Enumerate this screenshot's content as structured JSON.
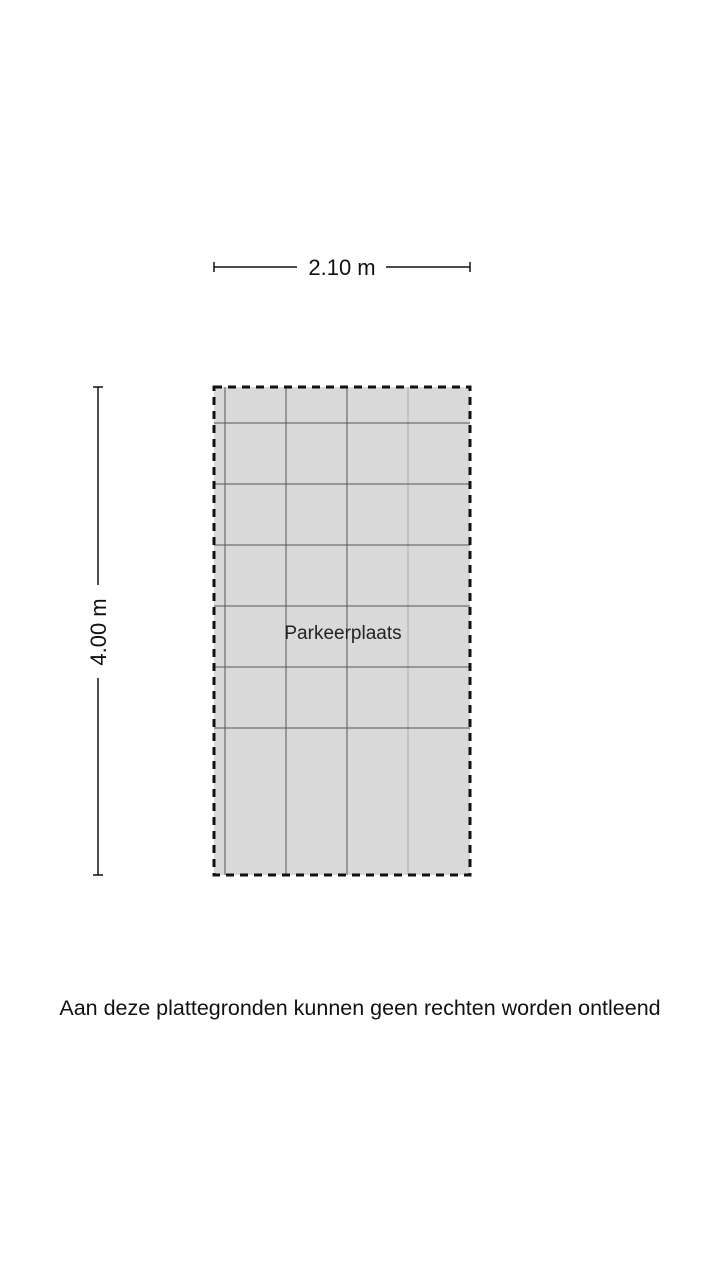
{
  "dimensions": {
    "width_label": "2.10 m",
    "height_label": "4.00 m"
  },
  "room": {
    "label": "Parkeerplaats",
    "fill_color": "#d9d9d9"
  },
  "disclaimer": "Aan deze plattegronden kunnen geen rechten worden ontleend"
}
